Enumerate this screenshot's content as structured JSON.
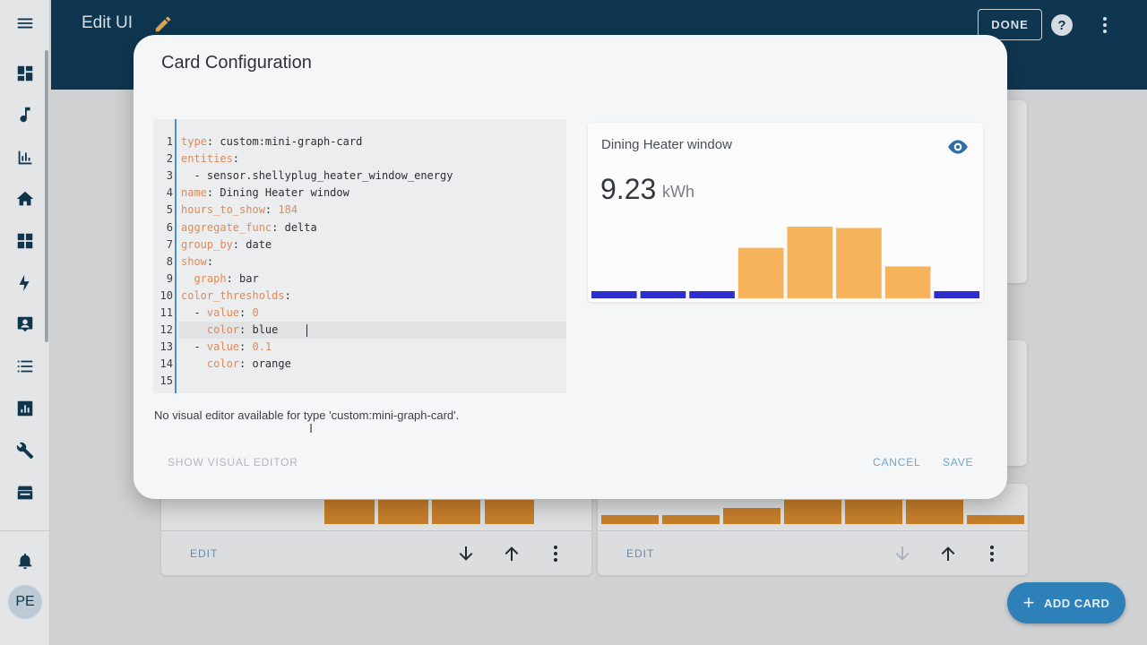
{
  "header": {
    "title": "Edit UI",
    "done_label": "DONE",
    "help_label": "?"
  },
  "sidebar": {
    "icons": [
      "menu-icon",
      "overview-icon",
      "media-icon",
      "history-icon",
      "home-icon",
      "dashboard-icon",
      "energy-icon",
      "map-icon",
      "logbook-icon",
      "history-chart-icon",
      "settings-icon",
      "hacs-icon",
      "notifications-icon"
    ],
    "user_initials": "PE"
  },
  "background_cards": [
    {
      "edit_label": "EDIT"
    },
    {
      "edit_label": "EDIT"
    }
  ],
  "fab": {
    "label": "ADD CARD"
  },
  "dialog": {
    "title": "Card Configuration",
    "code_lines": [
      {
        "key": "type",
        "sep": ": ",
        "val": "custom:mini-graph-card"
      },
      {
        "key": "entities",
        "sep": ":",
        "val": ""
      },
      {
        "key": "",
        "sep": "  - ",
        "val": "sensor.shellyplug_heater_window_energy"
      },
      {
        "key": "name",
        "sep": ": ",
        "val": "Dining Heater window"
      },
      {
        "key": "hours_to_show",
        "sep": ": ",
        "val": "184"
      },
      {
        "key": "aggregate_func",
        "sep": ": ",
        "val": "delta"
      },
      {
        "key": "group_by",
        "sep": ": ",
        "val": "date"
      },
      {
        "key": "show",
        "sep": ":",
        "val": ""
      },
      {
        "key": "  graph",
        "sep": ": ",
        "val": "bar"
      },
      {
        "key": "color_thresholds",
        "sep": ":",
        "val": ""
      },
      {
        "key": "  - value",
        "sep": ": ",
        "val": "0"
      },
      {
        "key": "    color",
        "sep": ": ",
        "val": "blue"
      },
      {
        "key": "  - value",
        "sep": ": ",
        "val": "0.1"
      },
      {
        "key": "    color",
        "sep": ": ",
        "val": "orange"
      },
      {
        "key": "",
        "sep": "",
        "val": ""
      }
    ],
    "note": "No visual editor available for type 'custom:mini-graph-card'.",
    "show_visual_label": "SHOW VISUAL EDITOR",
    "cancel_label": "CANCEL",
    "save_label": "SAVE"
  },
  "preview": {
    "name": "Dining Heater window",
    "value": "9.23",
    "unit": "kWh",
    "colors": {
      "blue": "#2d2fcc",
      "orange": "#f7b25c"
    }
  },
  "chart_data": {
    "type": "bar",
    "values": [
      0.05,
      0.05,
      0.05,
      1.9,
      2.7,
      2.65,
      1.2,
      0.05
    ],
    "thresholds": [
      {
        "value": 0,
        "color": "blue"
      },
      {
        "value": 0.1,
        "color": "orange"
      }
    ]
  }
}
